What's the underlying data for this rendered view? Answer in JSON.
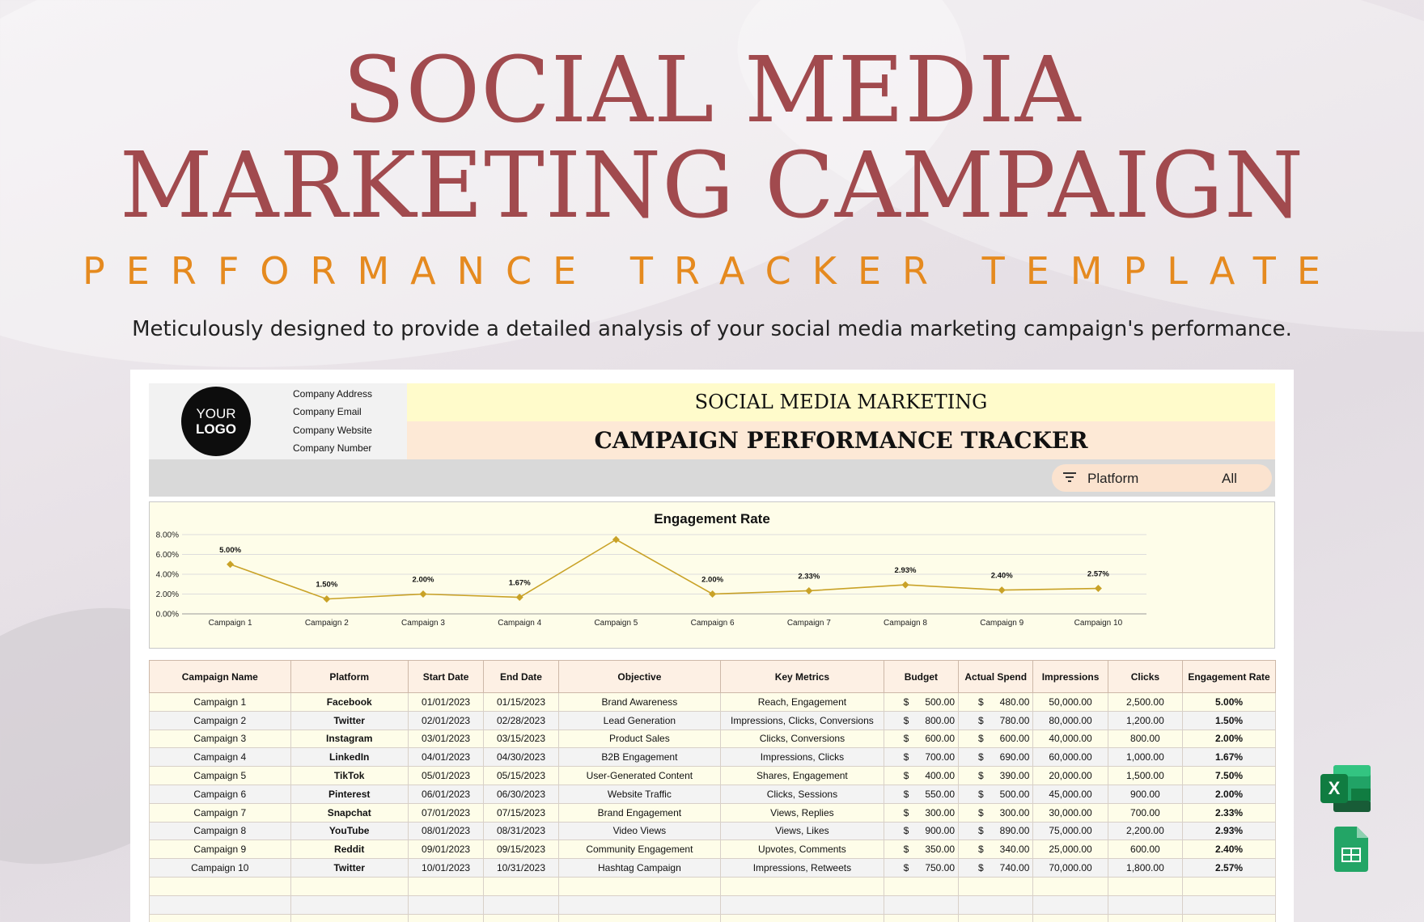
{
  "hero": {
    "title_line1": "SOCIAL MEDIA",
    "title_line2": "MARKETING CAMPAIGN",
    "subtitle": "PERFORMANCE TRACKER TEMPLATE",
    "description": "Meticulously designed to provide a detailed analysis of your social media marketing campaign's performance."
  },
  "header": {
    "logo_line1": "YOUR",
    "logo_line2": "LOGO",
    "company": [
      "Company Address",
      "Company Email",
      "Company Website",
      "Company Number"
    ],
    "title_a": "SOCIAL MEDIA MARKETING",
    "title_b": "CAMPAIGN PERFORMANCE TRACKER"
  },
  "filter": {
    "label": "Platform",
    "value": "All",
    "icon": "filter-icon"
  },
  "chart_data": {
    "type": "line",
    "title": "Engagement Rate",
    "categories": [
      "Campaign 1",
      "Campaign 2",
      "Campaign 3",
      "Campaign 4",
      "Campaign 5",
      "Campaign 6",
      "Campaign 7",
      "Campaign 8",
      "Campaign 9",
      "Campaign 10"
    ],
    "series": [
      {
        "values": [
          5.0,
          1.5,
          2.0,
          1.67,
          7.5,
          2.0,
          2.33,
          2.93,
          2.4,
          2.57
        ]
      }
    ],
    "data_labels": [
      "5.00%",
      "1.50%",
      "2.00%",
      "1.67%",
      "",
      "2.00%",
      "2.33%",
      "2.93%",
      "2.40%",
      "2.57%"
    ],
    "y_ticks": [
      "0.00%",
      "2.00%",
      "4.00%",
      "6.00%",
      "8.00%"
    ],
    "ylim": [
      0,
      8
    ],
    "grid": true,
    "color": "#c9a227"
  },
  "table": {
    "headers": [
      "Campaign Name",
      "Platform",
      "Start Date",
      "End Date",
      "Objective",
      "Key Metrics",
      "Budget",
      "Actual Spend",
      "Impressions",
      "Clicks",
      "Engagement Rate"
    ],
    "currency": "$",
    "rows": [
      [
        "Campaign 1",
        "Facebook",
        "01/01/2023",
        "01/15/2023",
        "Brand Awareness",
        "Reach, Engagement",
        "500.00",
        "480.00",
        "50,000.00",
        "2,500.00",
        "5.00%"
      ],
      [
        "Campaign 2",
        "Twitter",
        "02/01/2023",
        "02/28/2023",
        "Lead Generation",
        "Impressions, Clicks, Conversions",
        "800.00",
        "780.00",
        "80,000.00",
        "1,200.00",
        "1.50%"
      ],
      [
        "Campaign 3",
        "Instagram",
        "03/01/2023",
        "03/15/2023",
        "Product Sales",
        "Clicks, Conversions",
        "600.00",
        "600.00",
        "40,000.00",
        "800.00",
        "2.00%"
      ],
      [
        "Campaign 4",
        "LinkedIn",
        "04/01/2023",
        "04/30/2023",
        "B2B Engagement",
        "Impressions, Clicks",
        "700.00",
        "690.00",
        "60,000.00",
        "1,000.00",
        "1.67%"
      ],
      [
        "Campaign 5",
        "TikTok",
        "05/01/2023",
        "05/15/2023",
        "User-Generated Content",
        "Shares, Engagement",
        "400.00",
        "390.00",
        "20,000.00",
        "1,500.00",
        "7.50%"
      ],
      [
        "Campaign 6",
        "Pinterest",
        "06/01/2023",
        "06/30/2023",
        "Website Traffic",
        "Clicks, Sessions",
        "550.00",
        "500.00",
        "45,000.00",
        "900.00",
        "2.00%"
      ],
      [
        "Campaign 7",
        "Snapchat",
        "07/01/2023",
        "07/15/2023",
        "Brand Engagement",
        "Views, Replies",
        "300.00",
        "300.00",
        "30,000.00",
        "700.00",
        "2.33%"
      ],
      [
        "Campaign 8",
        "YouTube",
        "08/01/2023",
        "08/31/2023",
        "Video Views",
        "Views, Likes",
        "900.00",
        "890.00",
        "75,000.00",
        "2,200.00",
        "2.93%"
      ],
      [
        "Campaign 9",
        "Reddit",
        "09/01/2023",
        "09/15/2023",
        "Community Engagement",
        "Upvotes, Comments",
        "350.00",
        "340.00",
        "25,000.00",
        "600.00",
        "2.40%"
      ],
      [
        "Campaign 10",
        "Twitter",
        "10/01/2023",
        "10/31/2023",
        "Hashtag Campaign",
        "Impressions, Retweets",
        "750.00",
        "740.00",
        "70,000.00",
        "1,800.00",
        "2.57%"
      ]
    ]
  },
  "apps": {
    "excel": "excel-icon",
    "sheets": "google-sheets-icon"
  }
}
